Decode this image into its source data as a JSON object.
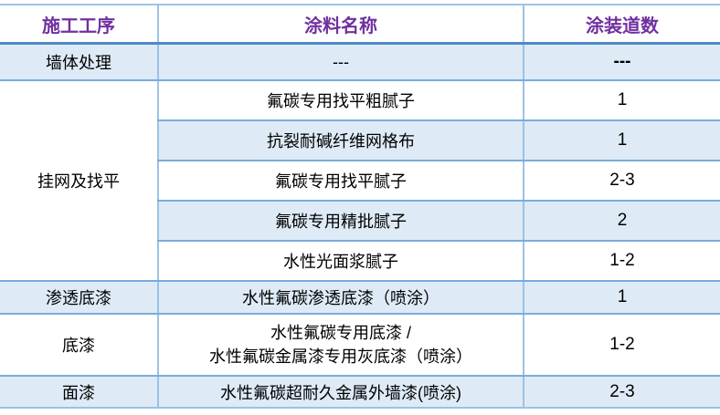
{
  "colors": {
    "header_text": "#7030A0",
    "row_fill_blue": "#DEEBF7",
    "grid_line": "#9CC2E5",
    "row_line": "#79ACDC",
    "header_line": "#4E8AC5",
    "body_text": "#000000"
  },
  "table": {
    "columns": [
      {
        "label": "施工工序"
      },
      {
        "label": "涂料名称"
      },
      {
        "label": "涂装道数"
      }
    ],
    "groups": [
      {
        "process": "墙体处理",
        "items": [
          {
            "name": "---",
            "coats": "---"
          }
        ]
      },
      {
        "process": "挂网及找平",
        "items": [
          {
            "name": "氟碳专用找平粗腻子",
            "coats": "1"
          },
          {
            "name": "抗裂耐碱纤维网格布",
            "coats": "1"
          },
          {
            "name": "氟碳专用找平腻子",
            "coats": "2-3"
          },
          {
            "name": "氟碳专用精批腻子",
            "coats": "2"
          },
          {
            "name": "水性光面浆腻子",
            "coats": "1-2"
          }
        ]
      },
      {
        "process": "渗透底漆",
        "items": [
          {
            "name": "水性氟碳渗透底漆（喷涂）",
            "coats": "1"
          }
        ]
      },
      {
        "process": "底漆",
        "items": [
          {
            "name_line1": "水性氟碳专用底漆 /",
            "name_line2": "水性氟碳金属漆专用灰底漆（喷涂）",
            "coats": "1-2"
          }
        ]
      },
      {
        "process": "面漆",
        "items": [
          {
            "name": "水性氟碳超耐久金属外墙漆(喷涂)",
            "coats": "2-3"
          }
        ]
      }
    ]
  }
}
